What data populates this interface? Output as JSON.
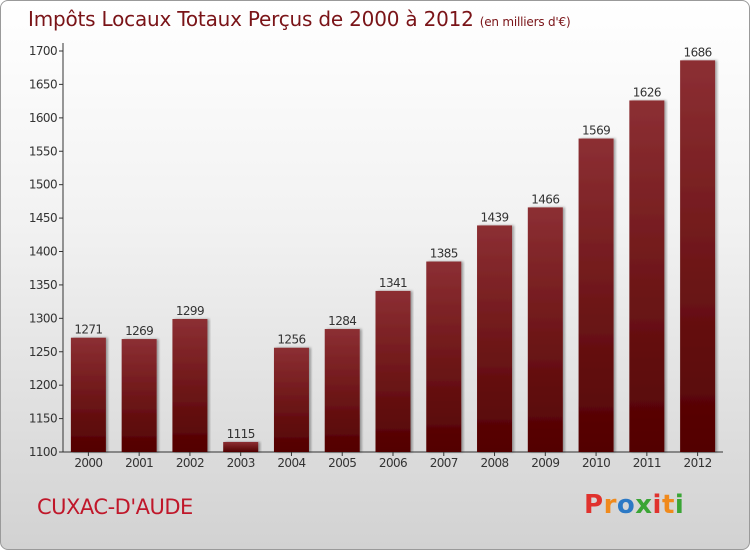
{
  "title": "Impôts Locaux Totaux Perçus de 2000 à 2012",
  "unit_label": "(en milliers d'€)",
  "city": "CUXAC-D'AUDE",
  "logo": [
    "P",
    "r",
    "o",
    "x",
    "i",
    "t",
    "i"
  ],
  "colors": {
    "title": "#7a1418",
    "city": "#c0172a",
    "bar_top": "#8c2f33",
    "bar_bottom": "#520000",
    "logo": [
      "#e0322e",
      "#f08a1c",
      "#2c79c5",
      "#3aa535",
      "#e0322e",
      "#f08a1c",
      "#3aa535"
    ]
  },
  "chart_data": {
    "type": "bar",
    "categories": [
      "2000",
      "2001",
      "2002",
      "2003",
      "2004",
      "2005",
      "2006",
      "2007",
      "2008",
      "2009",
      "2010",
      "2011",
      "2012"
    ],
    "values": [
      1271,
      1269,
      1299,
      1115,
      1256,
      1284,
      1341,
      1385,
      1439,
      1466,
      1569,
      1626,
      1686
    ],
    "ylim": [
      1100,
      1700
    ],
    "yticks": [
      1100,
      1150,
      1200,
      1250,
      1300,
      1350,
      1400,
      1450,
      1500,
      1550,
      1600,
      1650,
      1700
    ],
    "grid": false
  }
}
